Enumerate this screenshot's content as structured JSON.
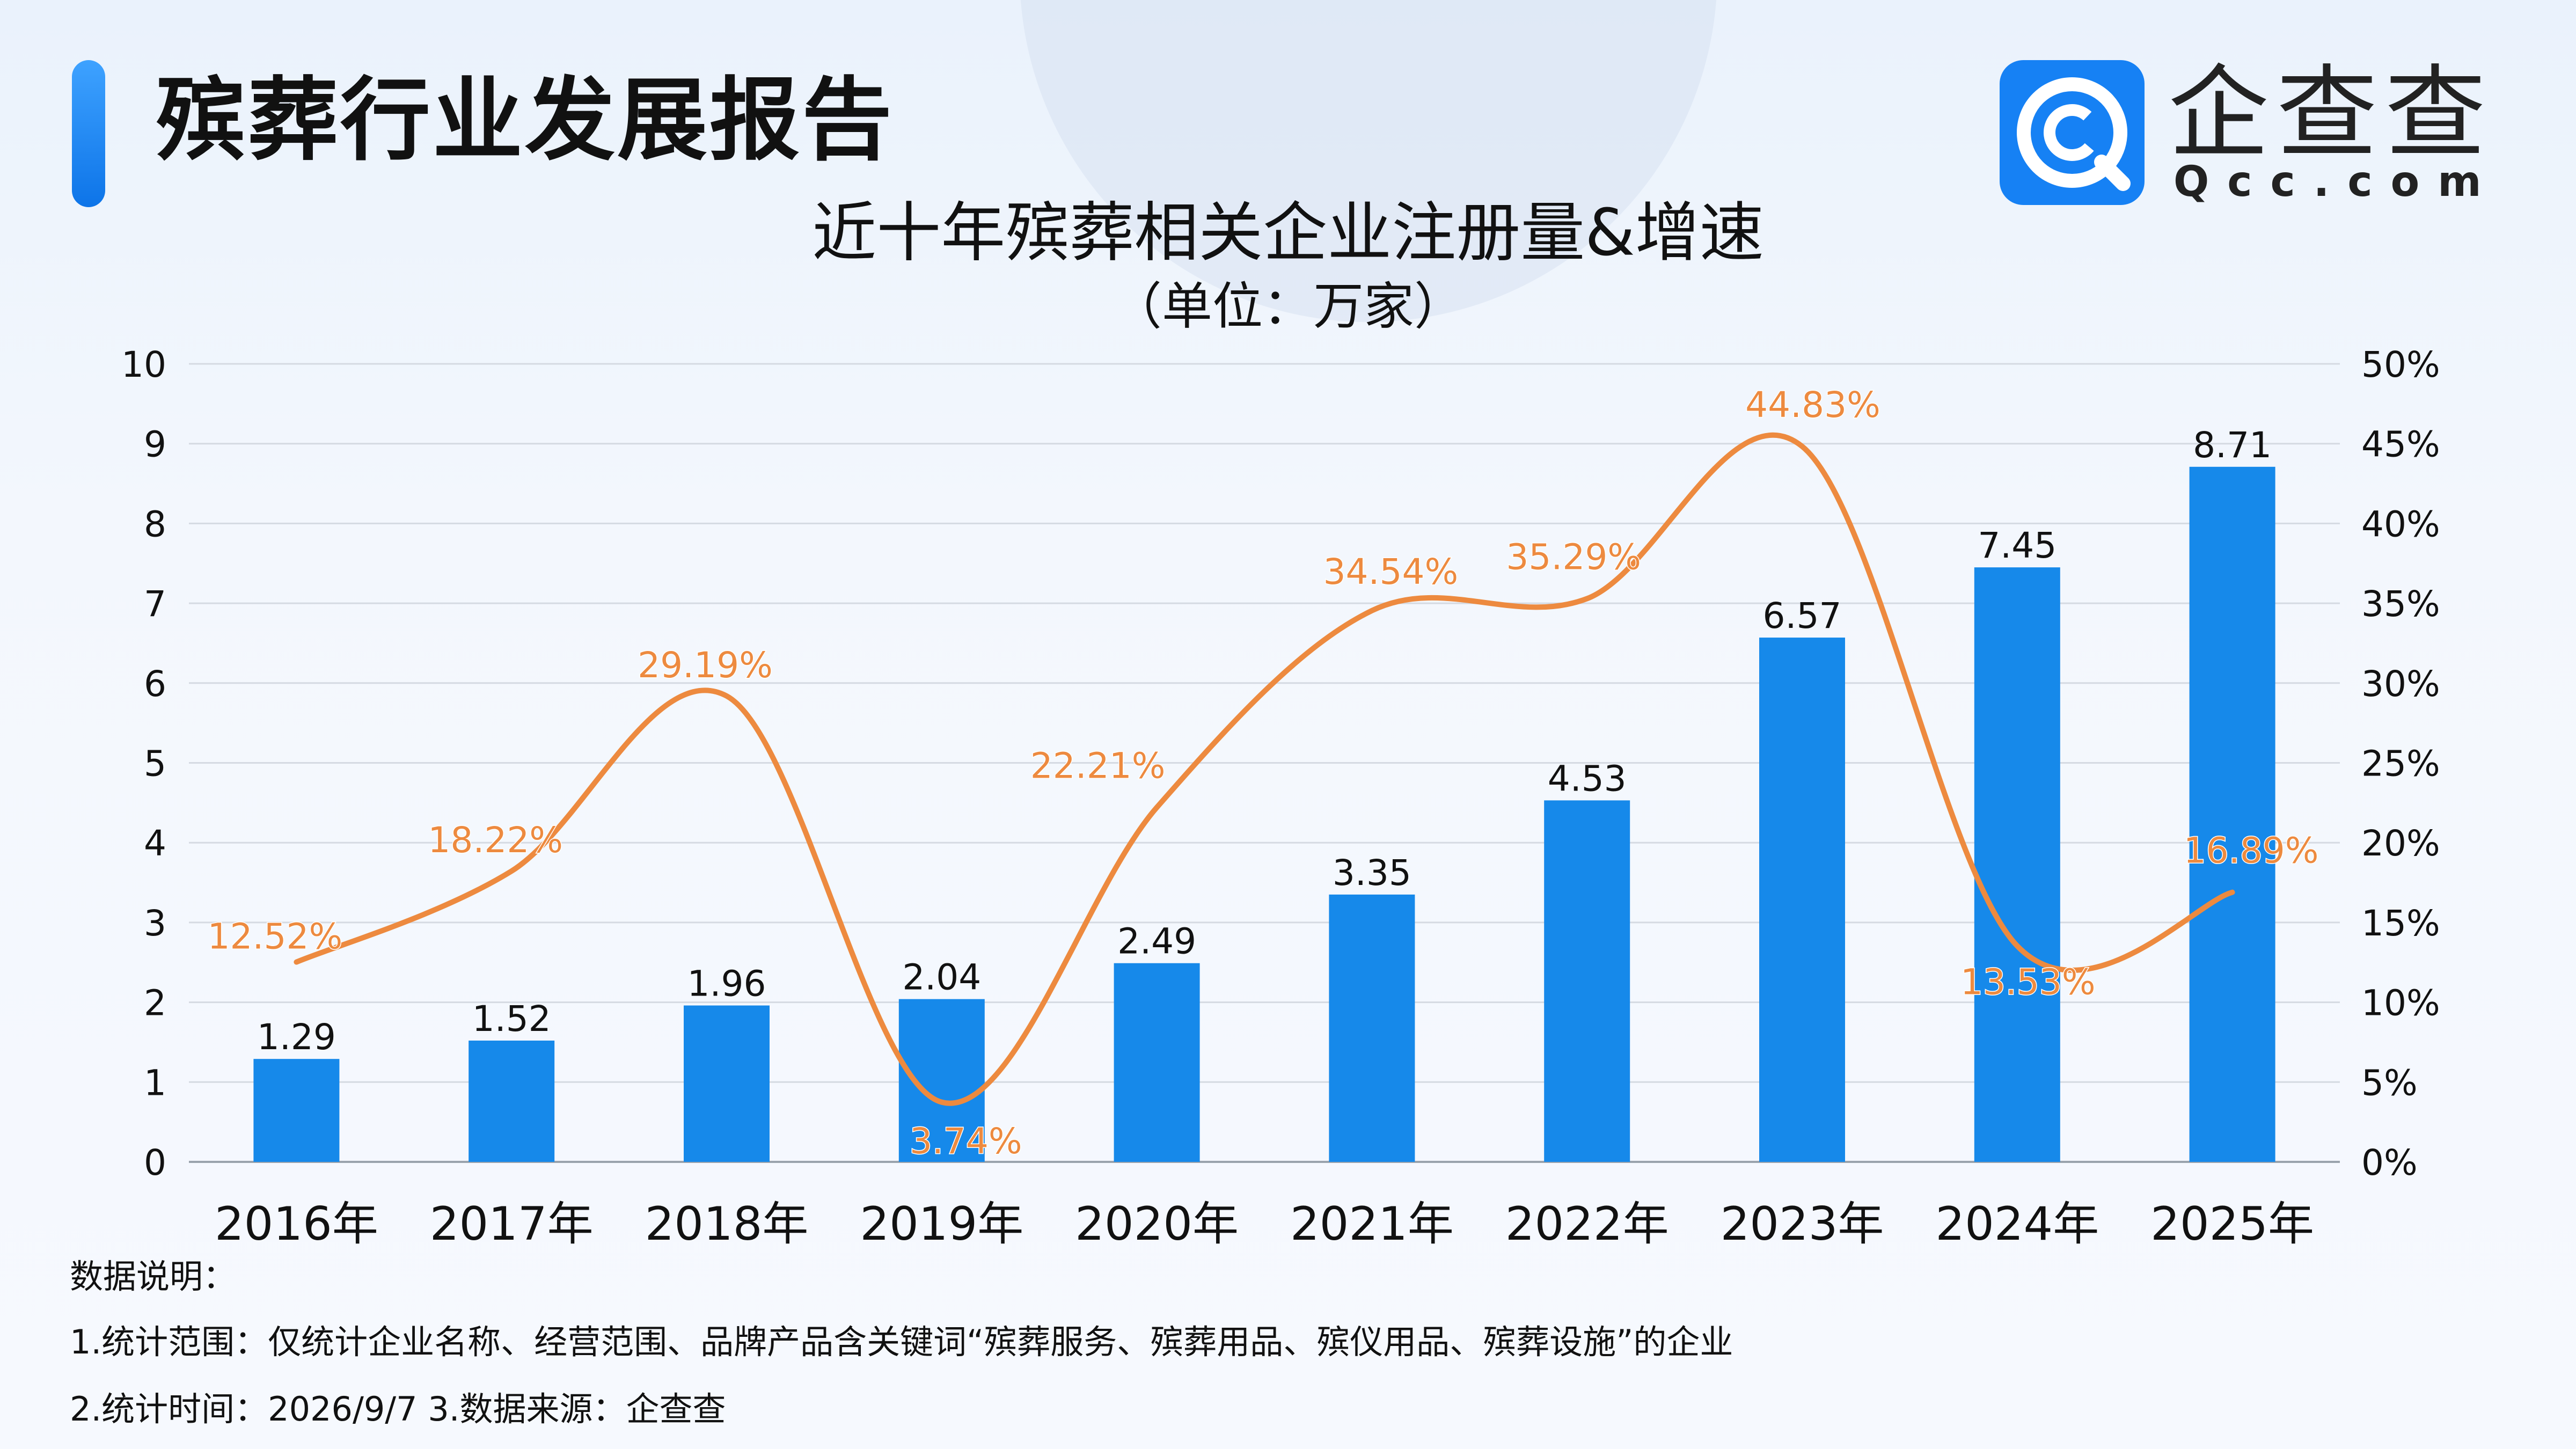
{
  "header": {
    "title": "殡葬行业发展报告",
    "logo_name": "企查查",
    "logo_domain": "Qcc.com"
  },
  "colors": {
    "bar": "#1689ea",
    "line": "#ed8a3f",
    "brand": "#1681f4",
    "grid": "#d5dae2"
  },
  "chart_data": {
    "type": "bar",
    "title": "近十年殡葬相关企业注册量&增速",
    "subtitle": "（单位：万家）",
    "categories": [
      "2016年",
      "2017年",
      "2018年",
      "2019年",
      "2020年",
      "2021年",
      "2022年",
      "2023年",
      "2024年",
      "2025年"
    ],
    "series": [
      {
        "type": "bar",
        "axis": "left",
        "values": [
          1.29,
          1.52,
          1.96,
          2.04,
          2.49,
          3.35,
          4.53,
          6.57,
          7.45,
          8.71
        ],
        "labels": [
          "1.29",
          "1.52",
          "1.96",
          "2.04",
          "2.49",
          "3.35",
          "4.53",
          "6.57",
          "7.45",
          "8.71"
        ]
      },
      {
        "type": "line",
        "axis": "right",
        "smooth": true,
        "values": [
          12.52,
          18.22,
          29.19,
          3.74,
          22.21,
          34.54,
          35.29,
          44.83,
          13.53,
          16.89
        ],
        "labels": [
          "12.52%",
          "18.22%",
          "29.19%",
          "3.74%",
          "22.21%",
          "34.54%",
          "35.29%",
          "44.83%",
          "13.53%",
          "16.89%"
        ]
      }
    ],
    "y_left": {
      "range": [
        0,
        10
      ],
      "ticks": [
        "0",
        "1",
        "2",
        "3",
        "4",
        "5",
        "6",
        "7",
        "8",
        "9",
        "10"
      ]
    },
    "y_right": {
      "range": [
        0,
        50
      ],
      "ticks": [
        "0%",
        "5%",
        "10%",
        "15%",
        "20%",
        "25%",
        "30%",
        "35%",
        "40%",
        "45%",
        "50%"
      ]
    },
    "grid": true,
    "legend": "none"
  },
  "footer": {
    "heading": "数据说明：",
    "line1": "1.统计范围：仅统计企业名称、经营范围、品牌产品含关键词“殡葬服务、殡葬用品、殡仪用品、殡葬设施”的企业",
    "line2": "2.统计时间：2026/9/7  3.数据来源：企查查"
  }
}
